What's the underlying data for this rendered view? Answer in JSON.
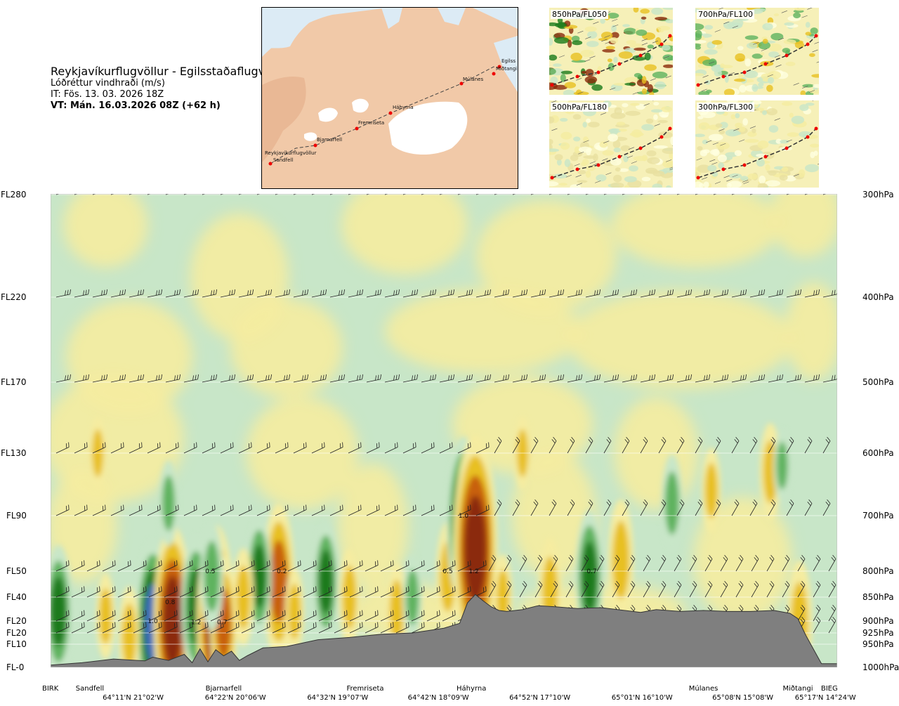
{
  "header": {
    "route": "Reykjavíkurflugvöllur - Egilsstaðaflugvöllur",
    "variable": "Lóðréttur vindhraði (m/s)",
    "issue_time": "IT: Fös. 13. 03. 2026 18Z",
    "valid_time": "VT: Mán. 16.03.2026 08Z (+62 h)"
  },
  "overview_map": {
    "places": [
      "Reykjavíkurflugvöllur",
      "Sandfell",
      "Bjarnarfell",
      "Fremriseta",
      "Háhyrna",
      "Múlanes",
      "Egilss",
      "Miðtangi"
    ]
  },
  "level_maps": [
    {
      "label": "850hPa/FL050"
    },
    {
      "label": "700hPa/FL100"
    },
    {
      "label": "500hPa/FL180"
    },
    {
      "label": "300hPa/FL300"
    }
  ],
  "chart_data": {
    "type": "heatmap",
    "title": "",
    "colors": {
      "strong_down": "#1a7a1a",
      "moderate_down": "#5fb35f",
      "weak_down": "#c8e6c8",
      "neutral": "#ffffe0",
      "weak_up": "#f5eca0",
      "moderate_up": "#e8c020",
      "strong_up": "#c86010",
      "very_strong_up": "#8b2a0a",
      "very_strong_down": "#3a6ab8",
      "terrain": "#7f7f7f"
    },
    "left_axis": {
      "labels": [
        "FL280",
        "FL220",
        "FL170",
        "FL130",
        "FL90",
        "FL50",
        "FL40",
        "FL20",
        "FL20",
        "FL10",
        "FL-0"
      ],
      "pressure": [
        300,
        400,
        500,
        600,
        700,
        800,
        850,
        900,
        925,
        950,
        1000
      ]
    },
    "right_axis": {
      "labels": [
        "300hPa",
        "400hPa",
        "500hPa",
        "600hPa",
        "700hPa",
        "800hPa",
        "850hPa",
        "900hPa",
        "925hPa",
        "950hPa",
        "1000hPa"
      ],
      "pressure": [
        300,
        400,
        500,
        600,
        700,
        800,
        850,
        900,
        925,
        950,
        1000
      ]
    },
    "ylim": [
      1000,
      300
    ],
    "xlim": [
      0,
      100
    ],
    "waypoints": [
      {
        "name": "BIRK",
        "x": 0
      },
      {
        "name": "Sandfell",
        "x": 5
      },
      {
        "name": "Bjarnarfell",
        "x": 22
      },
      {
        "name": "Fremriseta",
        "x": 40
      },
      {
        "name": "Háhyrna",
        "x": 53.5
      },
      {
        "name": "Múlanes",
        "x": 83
      },
      {
        "name": "Miðtangi",
        "x": 95
      },
      {
        "name": "BIEG",
        "x": 99
      }
    ],
    "coordinates": [
      {
        "label": "64°11'N 21°02'W",
        "x": 10.5
      },
      {
        "label": "64°22'N 20°06'W",
        "x": 23.5
      },
      {
        "label": "64°32'N 19°07'W",
        "x": 36.5
      },
      {
        "label": "64°42'N 18°09'W",
        "x": 49.3
      },
      {
        "label": "64°52'N 17°10'W",
        "x": 62.2
      },
      {
        "label": "65°01'N 16°10'W",
        "x": 75.2
      },
      {
        "label": "65°08'N 15°08'W",
        "x": 88
      },
      {
        "label": "65°17'N 14°24'W",
        "x": 98.5
      }
    ],
    "terrain_profile": {
      "x": [
        0,
        4,
        8,
        12,
        13,
        15,
        17,
        18,
        19,
        20,
        21,
        22,
        23,
        24,
        25,
        27,
        30,
        34,
        38,
        42,
        46,
        50,
        52,
        53,
        54,
        55,
        56,
        57,
        58,
        60,
        62,
        64,
        67,
        70,
        73,
        75,
        77,
        80,
        83,
        86,
        89,
        92,
        94,
        95,
        96,
        98,
        100
      ],
      "p": [
        995,
        990,
        982,
        986,
        978,
        985,
        972,
        990,
        960,
        988,
        962,
        975,
        965,
        985,
        975,
        958,
        955,
        940,
        935,
        928,
        925,
        915,
        905,
        862,
        845,
        858,
        870,
        878,
        880,
        876,
        868,
        870,
        874,
        872,
        878,
        882,
        876,
        880,
        878,
        880,
        880,
        878,
        884,
        895,
        930,
        992,
        992
      ]
    },
    "vertical_velocity": {
      "unit": "m/s",
      "levels": [
        -1.5,
        -1.0,
        -0.5,
        -0.2,
        -0.1,
        0.1,
        0.2,
        0.5,
        1.0,
        1.5
      ],
      "cores": [
        {
          "x": 13,
          "p": 905,
          "w": -1.0
        },
        {
          "x": 15.5,
          "p": 900,
          "w": 1.2
        },
        {
          "x": 18.5,
          "p": 870,
          "w": -0.8
        },
        {
          "x": 21,
          "p": 900,
          "w": 1.2
        },
        {
          "x": 22,
          "p": 905,
          "w": 0.7
        },
        {
          "x": 20.5,
          "p": 810,
          "w": -0.5
        },
        {
          "x": 29,
          "p": 820,
          "w": 0.9
        },
        {
          "x": 26.5,
          "p": 810,
          "w": -0.6
        },
        {
          "x": 35,
          "p": 820,
          "w": -0.6
        },
        {
          "x": 50.5,
          "p": 810,
          "w": 0.5
        },
        {
          "x": 52.5,
          "p": 710,
          "w": -1.0
        },
        {
          "x": 54,
          "p": 760,
          "w": 1.5
        },
        {
          "x": 68.5,
          "p": 810,
          "w": -0.7
        },
        {
          "x": 91.5,
          "p": 630,
          "w": 0.4
        }
      ],
      "contour_labels": [
        {
          "text": "1.0",
          "x": 13,
          "p": 900
        },
        {
          "text": "0.8",
          "x": 15.2,
          "p": 860
        },
        {
          "text": "1.2",
          "x": 18.5,
          "p": 902
        },
        {
          "text": "0.7",
          "x": 21.8,
          "p": 902
        },
        {
          "text": "0.5",
          "x": 20.3,
          "p": 800
        },
        {
          "text": "0.2",
          "x": 29.4,
          "p": 800
        },
        {
          "text": "0.5",
          "x": 50.5,
          "p": 800
        },
        {
          "text": "1.2",
          "x": 53.8,
          "p": 800
        },
        {
          "text": "1.0",
          "x": 52.5,
          "p": 700
        },
        {
          "text": "0.7",
          "x": 68.8,
          "p": 800
        }
      ]
    },
    "wind_barbs": {
      "levels_p": [
        300,
        400,
        500,
        600,
        700,
        800,
        850,
        900,
        925
      ],
      "grid_lines": true
    },
    "legend": "none"
  }
}
